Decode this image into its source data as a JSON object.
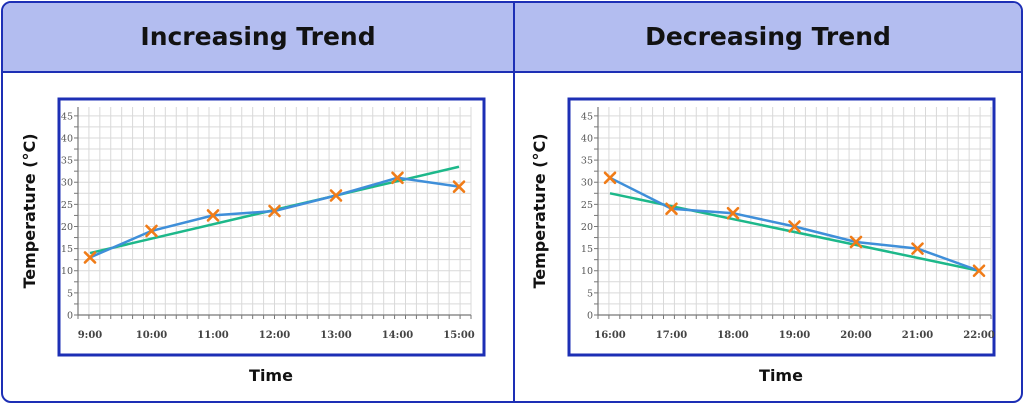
{
  "panels": [
    {
      "title": "Increasing Trend"
    },
    {
      "title": "Decreasing Trend"
    }
  ],
  "colors": {
    "border": "#1d2fb5",
    "header": "#b3bdf0",
    "data_line": "#3f8fd9",
    "trend_line": "#1db88a",
    "marker": "#f07c18",
    "grid": "#d9d9d9"
  },
  "chart_data": [
    {
      "type": "line",
      "title": "Increasing Trend",
      "xlabel": "Time",
      "ylabel": "Temperature (°C)",
      "categories": [
        "9:00",
        "10:00",
        "11:00",
        "12:00",
        "13:00",
        "14:00",
        "15:00"
      ],
      "y_ticks": [
        0,
        5,
        10,
        15,
        20,
        25,
        30,
        35,
        40,
        45
      ],
      "ylim": [
        0,
        47
      ],
      "grid": true,
      "series": [
        {
          "values": [
            13,
            19,
            22.5,
            23.5,
            27,
            31,
            29
          ],
          "marker": "x"
        }
      ],
      "trend_line": {
        "start": 14,
        "end": 33.5
      }
    },
    {
      "type": "line",
      "title": "Decreasing Trend",
      "xlabel": "Time",
      "ylabel": "Temperature (°C)",
      "categories": [
        "16:00",
        "17:00",
        "18:00",
        "19:00",
        "20:00",
        "21:00",
        "22:00"
      ],
      "y_ticks": [
        0,
        5,
        10,
        15,
        20,
        25,
        30,
        35,
        40,
        45
      ],
      "ylim": [
        0,
        47
      ],
      "grid": true,
      "series": [
        {
          "values": [
            31,
            24,
            23,
            20,
            16.5,
            15,
            10
          ],
          "marker": "x"
        }
      ],
      "trend_line": {
        "start": 27.5,
        "end": 10
      }
    }
  ]
}
